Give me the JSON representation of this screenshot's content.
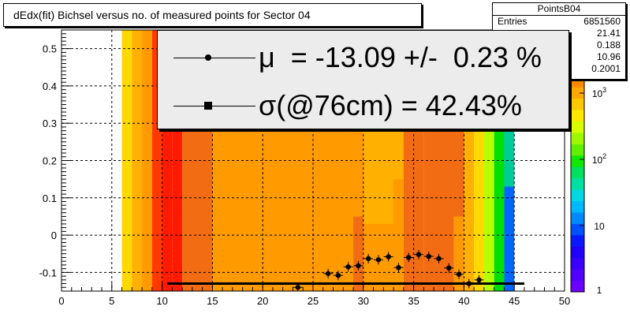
{
  "title": "dEdx(fit) Bichsel versus no. of measured points for Sector 04",
  "stats": {
    "name": "PointsB04",
    "entries_label": "Entries",
    "entries_value": "6851560",
    "row2_value": "21.41",
    "row3_value": "0.188",
    "row4_value": "10.96",
    "row5_value": "0.2001"
  },
  "fit": {
    "mu_text": "μ  = -13.09 +/-  0.23 %",
    "sigma_text": "σ(@76cm) = 42.43%"
  },
  "colors": {
    "red": "#ff1a00",
    "red_orange": "#ff3a00",
    "orange_dark": "#f26c13",
    "orange": "#ff9a00",
    "orange_light": "#ffb000",
    "yellow": "#ffd800",
    "green_yellow": "#b6ff00",
    "green": "#00e000",
    "teal": "#00cc99",
    "blue": "#0066ff"
  },
  "chart_data": {
    "type": "heatmap",
    "title": "dEdx(fit) Bichsel versus no. of measured points for Sector 04",
    "xlim": [
      0,
      50
    ],
    "ylim": [
      -0.15,
      0.55
    ],
    "x_ticks": [
      "0",
      "5",
      "10",
      "15",
      "20",
      "25",
      "30",
      "35",
      "40",
      "45",
      "50"
    ],
    "y_ticks": [
      "-0.1",
      "0",
      "0.1",
      "0.2",
      "0.3",
      "0.4",
      "0.5"
    ],
    "grid": true,
    "z_scale": "log",
    "z_ticks": [
      "1",
      "10",
      "10^2",
      "10^3"
    ],
    "points": {
      "x": [
        23.5,
        26.5,
        27.5,
        28.5,
        29.5,
        30.5,
        31.5,
        32.5,
        33.5,
        34.5,
        35.5,
        36.5,
        37.5,
        38.5,
        39.5,
        40.5,
        41.5
      ],
      "y": [
        -0.14,
        -0.103,
        -0.108,
        -0.085,
        -0.082,
        -0.063,
        -0.066,
        -0.058,
        -0.087,
        -0.06,
        -0.052,
        -0.057,
        -0.063,
        -0.088,
        -0.105,
        -0.13,
        -0.12
      ]
    },
    "fit_line": {
      "x": [
        10.5,
        46
      ],
      "y": [
        -0.13,
        -0.13
      ]
    }
  }
}
